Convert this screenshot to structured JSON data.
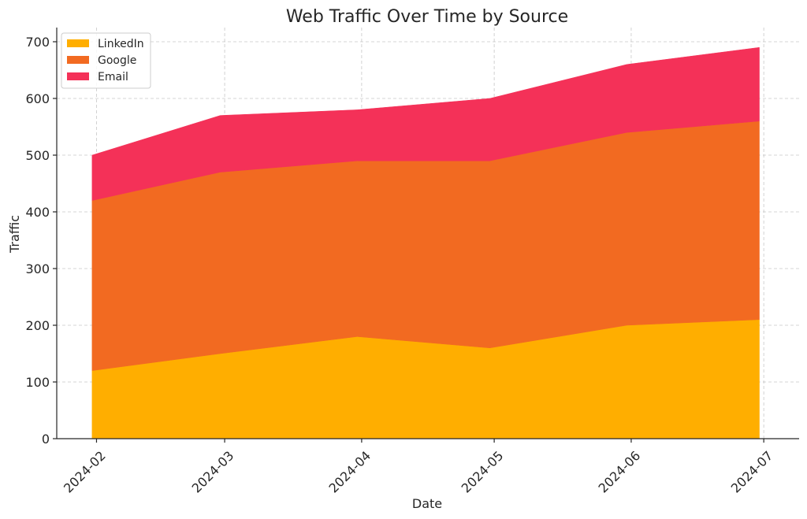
{
  "chart_data": {
    "type": "area",
    "stacked": true,
    "title": "Web Traffic Over Time by Source",
    "xlabel": "Date",
    "ylabel": "Traffic",
    "x": [
      "2024-01-31",
      "2024-02-29",
      "2024-03-31",
      "2024-04-30",
      "2024-05-31",
      "2024-06-30"
    ],
    "x_ticks": [
      "2024-02",
      "2024-03",
      "2024-04",
      "2024-05",
      "2024-06",
      "2024-07"
    ],
    "y_ticks": [
      0,
      100,
      200,
      300,
      400,
      500,
      600,
      700
    ],
    "ylim": [
      0,
      725
    ],
    "grid": true,
    "legend_position": "top-left",
    "series": [
      {
        "name": "LinkedIn",
        "color": "#FFAE00",
        "values": [
          120,
          150,
          180,
          160,
          200,
          210
        ]
      },
      {
        "name": "Google",
        "color": "#F26A21",
        "values": [
          300,
          320,
          310,
          330,
          340,
          350
        ]
      },
      {
        "name": "Email",
        "color": "#F43158",
        "values": [
          80,
          100,
          90,
          110,
          120,
          130
        ]
      }
    ]
  }
}
